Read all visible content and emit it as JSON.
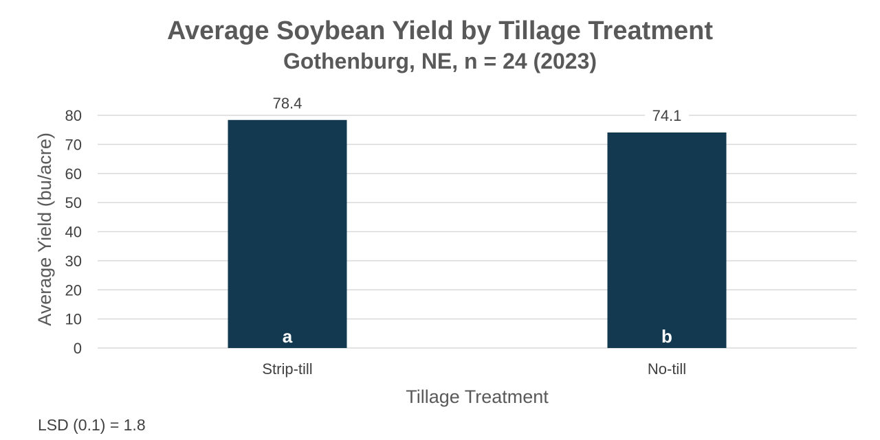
{
  "chart_data": {
    "type": "bar",
    "title": "Average Soybean Yield by Tillage Treatment",
    "subtitle": "Gothenburg, NE, n = 24 (2023)",
    "xlabel": "Tillage Treatment",
    "ylabel": "Average Yield (bu/acre)",
    "categories": [
      "Strip-till",
      "No-till"
    ],
    "values": [
      78.4,
      74.1
    ],
    "data_labels": [
      "78.4",
      "74.1"
    ],
    "significance_letters": [
      "a",
      "b"
    ],
    "ylim": [
      0,
      80
    ],
    "yticks": [
      0,
      10,
      20,
      30,
      40,
      50,
      60,
      70,
      80
    ],
    "grid": true,
    "legend": "none",
    "bar_color": "#12394f",
    "footnote": "LSD (0.1) = 1.8"
  }
}
